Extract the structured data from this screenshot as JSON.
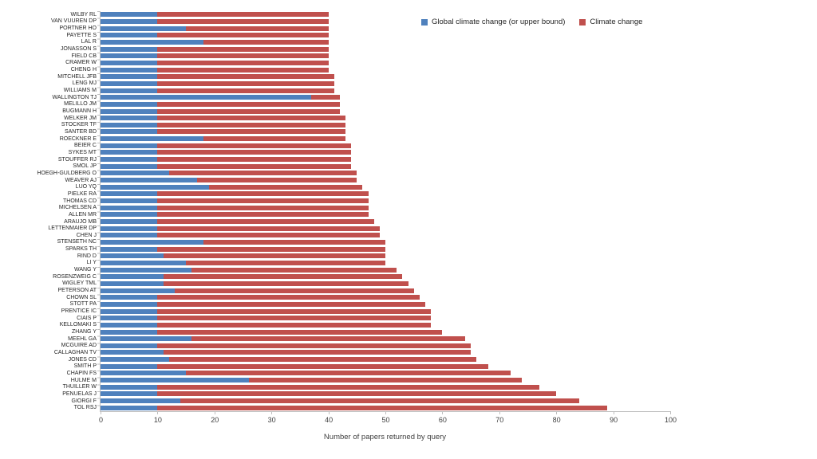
{
  "chart_data": {
    "type": "bar",
    "orientation": "horizontal",
    "stacked": true,
    "title": "",
    "xlabel": "Number of papers returned by query",
    "ylabel": "",
    "xlim": [
      0,
      100
    ],
    "xticks": [
      0,
      10,
      20,
      30,
      40,
      50,
      60,
      70,
      80,
      90,
      100
    ],
    "grid": false,
    "legend_position": "top-right",
    "legend": [
      {
        "label": "Global climate change (or upper bound)",
        "color": "#4f81bd"
      },
      {
        "label": "Climate change",
        "color": "#c0504d"
      }
    ],
    "categories": [
      "WILBY RL",
      "VAN VUUREN DP",
      "PORTNER HO",
      "PAYETTE S",
      "LAL R",
      "JONASSON S",
      "FIELD CB",
      "CRAMER W",
      "CHENG H",
      "MITCHELL JFB",
      "LENG MJ",
      "WILLIAMS M",
      "WALLINGTON TJ",
      "MELILLO JM",
      "BUGMANN H",
      "WELKER JM",
      "STOCKER TF",
      "SANTER BD",
      "ROECKNER E",
      "BEIER C",
      "SYKES MT",
      "STOUFFER RJ",
      "SMOL JP",
      "HOEGH-GULDBERG O",
      "WEAVER AJ",
      "LUO YQ",
      "PIELKE RA",
      "THOMAS CD",
      "MICHELSEN A",
      "ALLEN MR",
      "ARAUJO MB",
      "LETTENMAIER DP",
      "CHEN J",
      "STENSETH NC",
      "SPARKS TH",
      "RIND D",
      "LI Y",
      "WANG Y",
      "ROSENZWEIG C",
      "WIGLEY TML",
      "PETERSON AT",
      "CHOWN SL",
      "STOTT PA",
      "PRENTICE IC",
      "CIAIS P",
      "KELLOMAKI S",
      "ZHANG Y",
      "MEEHL GA",
      "MCGUIRE AD",
      "CALLAGHAN TV",
      "JONES CD",
      "SMITH P",
      "CHAPIN FS",
      "HULME M",
      "THUILLER W",
      "PENUELAS J",
      "GIORGI F",
      "TOL RSJ"
    ],
    "series": [
      {
        "name": "Global climate change (or upper bound)",
        "color": "#4f81bd",
        "values": [
          10,
          10,
          15,
          10,
          18,
          10,
          10,
          10,
          10,
          10,
          10,
          10,
          37,
          10,
          10,
          10,
          10,
          10,
          18,
          10,
          10,
          10,
          10,
          12,
          17,
          19,
          10,
          10,
          10,
          10,
          10,
          10,
          10,
          18,
          10,
          11,
          15,
          16,
          11,
          11,
          13,
          10,
          10,
          10,
          10,
          10,
          10,
          16,
          10,
          11,
          12,
          10,
          15,
          26,
          10,
          10,
          14,
          10
        ]
      },
      {
        "name": "Climate change",
        "color": "#c0504d",
        "values": [
          30,
          30,
          25,
          30,
          22,
          30,
          30,
          30,
          30,
          31,
          31,
          31,
          5,
          32,
          32,
          33,
          33,
          33,
          25,
          34,
          34,
          34,
          34,
          33,
          28,
          27,
          37,
          37,
          37,
          37,
          38,
          39,
          39,
          32,
          40,
          39,
          35,
          36,
          42,
          43,
          42,
          46,
          47,
          48,
          48,
          48,
          50,
          48,
          55,
          54,
          54,
          58,
          57,
          48,
          67,
          70,
          70,
          79
        ]
      }
    ],
    "totals": [
      40,
      40,
      40,
      40,
      40,
      40,
      40,
      40,
      40,
      41,
      41,
      41,
      42,
      42,
      42,
      43,
      43,
      43,
      43,
      44,
      44,
      44,
      44,
      45,
      45,
      46,
      47,
      47,
      47,
      47,
      48,
      49,
      49,
      50,
      50,
      50,
      50,
      52,
      53,
      54,
      55,
      56,
      57,
      58,
      58,
      58,
      60,
      64,
      65,
      65,
      66,
      68,
      72,
      74,
      77,
      80,
      84,
      89
    ]
  }
}
